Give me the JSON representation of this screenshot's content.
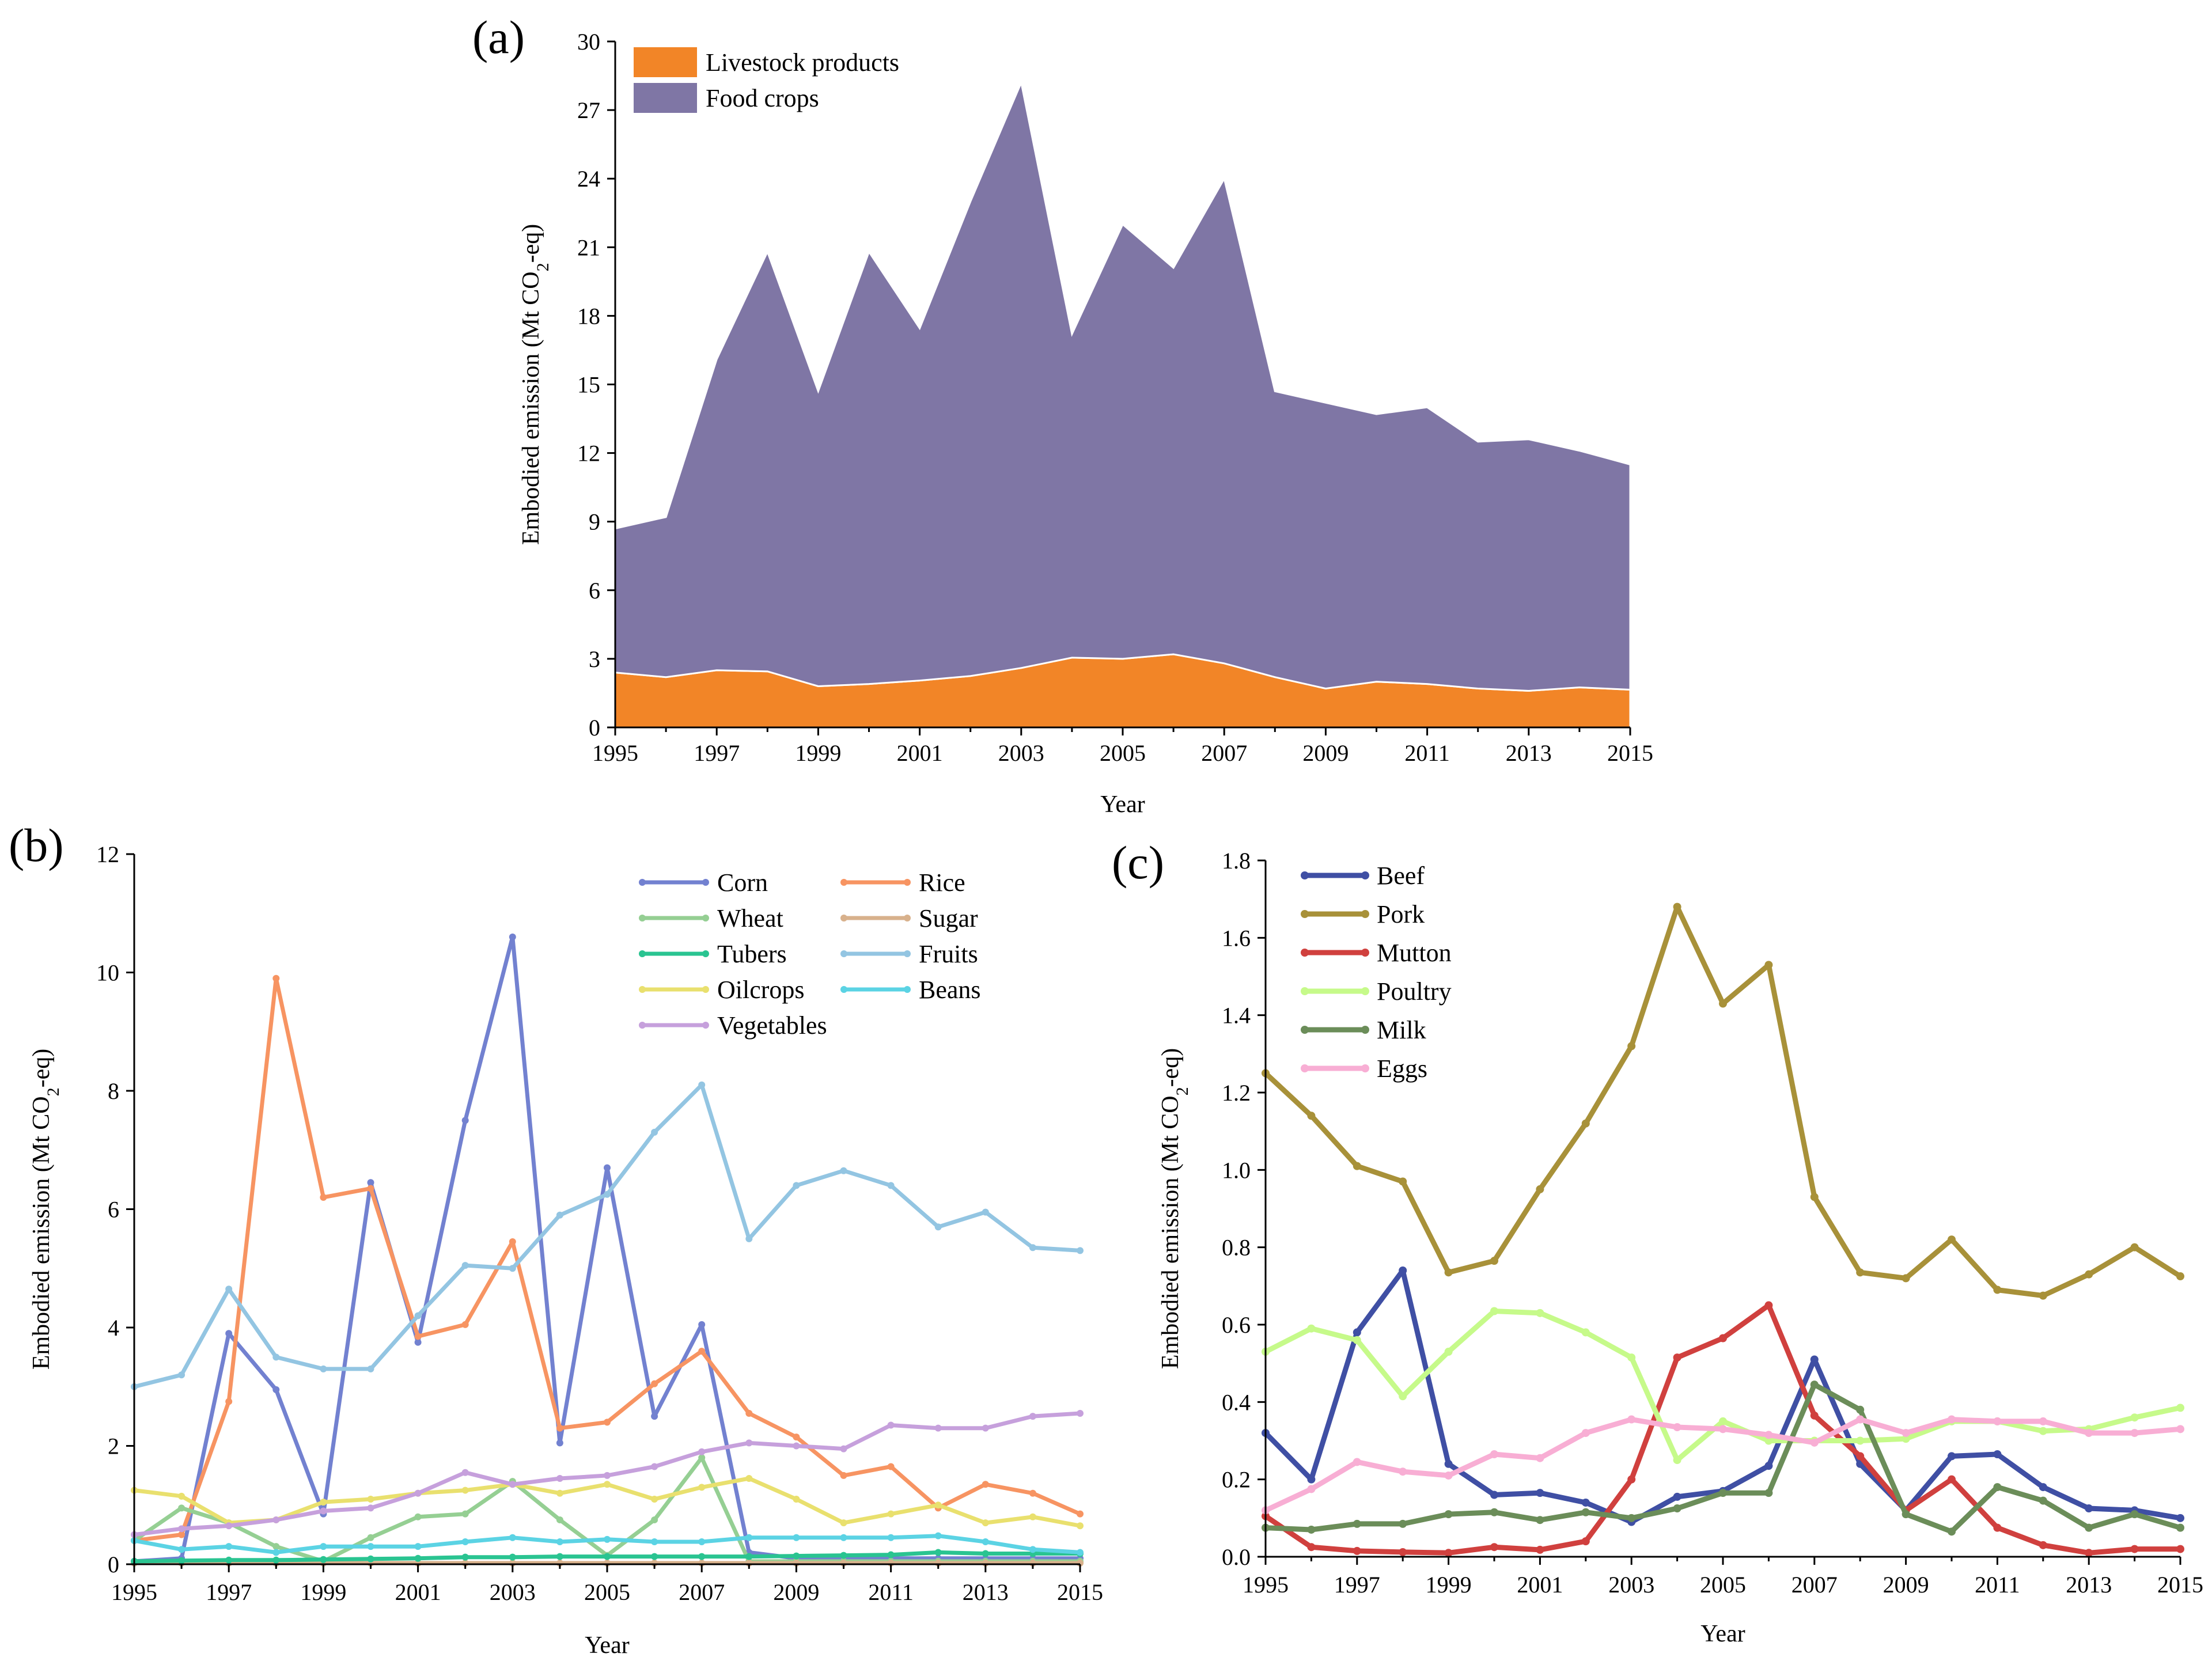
{
  "chart_data": [
    {
      "id": "a",
      "panel_label": "(a)",
      "type": "area",
      "stacked": true,
      "xlabel": "Year",
      "ylabel_parts": [
        "Embodied emission (Mt  CO",
        "2",
        "-eq)"
      ],
      "ylim": [
        0,
        30
      ],
      "yticks": [
        0,
        3,
        6,
        9,
        12,
        15,
        18,
        21,
        24,
        27,
        30
      ],
      "xlim": [
        1995,
        2015
      ],
      "xticks": [
        1995,
        1997,
        1999,
        2001,
        2003,
        2005,
        2007,
        2009,
        2011,
        2013,
        2015
      ],
      "legend_position": "top-left",
      "x": [
        1995,
        1996,
        1997,
        1998,
        1999,
        2000,
        2001,
        2002,
        2003,
        2004,
        2005,
        2006,
        2007,
        2008,
        2009,
        2010,
        2011,
        2012,
        2013,
        2014,
        2015
      ],
      "series": [
        {
          "name": "Livestock products",
          "color": "#f28527",
          "values": [
            2.4,
            2.2,
            2.5,
            2.45,
            1.8,
            1.9,
            2.05,
            2.25,
            2.6,
            3.05,
            3.0,
            3.2,
            2.8,
            2.2,
            1.7,
            2.0,
            1.9,
            1.7,
            1.6,
            1.75,
            1.65
          ]
        },
        {
          "name": "Food crops",
          "color": "#7f76a5",
          "values": [
            6.3,
            7.0,
            13.6,
            18.35,
            12.9,
            18.9,
            15.4,
            20.75,
            25.6,
            14.15,
            19.0,
            16.9,
            21.2,
            12.5,
            12.5,
            11.7,
            12.1,
            10.8,
            11.0,
            10.35,
            9.85
          ]
        }
      ]
    },
    {
      "id": "b",
      "panel_label": "(b)",
      "type": "line",
      "xlabel": "Year",
      "ylabel_parts": [
        "Embodied emission (Mt  CO",
        "2",
        "-eq)"
      ],
      "ylim": [
        0,
        12
      ],
      "yticks": [
        0,
        2,
        4,
        6,
        8,
        10,
        12
      ],
      "xlim": [
        1995,
        2015
      ],
      "xticks": [
        1995,
        1997,
        1999,
        2001,
        2003,
        2005,
        2007,
        2009,
        2011,
        2013,
        2015
      ],
      "legend_position": "top-right",
      "x": [
        1995,
        1996,
        1997,
        1998,
        1999,
        2000,
        2001,
        2002,
        2003,
        2004,
        2005,
        2006,
        2007,
        2008,
        2009,
        2010,
        2011,
        2012,
        2013,
        2014,
        2015
      ],
      "series": [
        {
          "name": "Corn",
          "color": "#7281d0",
          "values": [
            0.05,
            0.1,
            3.9,
            2.95,
            0.85,
            6.45,
            3.75,
            7.5,
            10.6,
            2.05,
            6.7,
            2.5,
            4.05,
            0.2,
            0.1,
            0.1,
            0.1,
            0.1,
            0.1,
            0.1,
            0.1
          ]
        },
        {
          "name": "Rice",
          "color": "#f79462",
          "values": [
            0.4,
            0.5,
            2.75,
            9.9,
            6.2,
            6.35,
            3.85,
            4.05,
            5.45,
            2.3,
            2.4,
            3.05,
            3.6,
            2.55,
            2.15,
            1.5,
            1.65,
            0.95,
            1.35,
            1.2,
            0.85
          ]
        },
        {
          "name": "Wheat",
          "color": "#95cf93",
          "values": [
            0.4,
            0.95,
            0.7,
            0.3,
            0.05,
            0.45,
            0.8,
            0.85,
            1.4,
            0.75,
            0.15,
            0.75,
            1.8,
            0.05,
            0.05,
            0.05,
            0.05,
            0.05,
            0.05,
            0.05,
            0.05
          ]
        },
        {
          "name": "Sugar",
          "color": "#d8b18c",
          "values": [
            0.02,
            0.02,
            0.02,
            0.02,
            0.02,
            0.02,
            0.02,
            0.02,
            0.02,
            0.02,
            0.02,
            0.02,
            0.02,
            0.02,
            0.02,
            0.02,
            0.02,
            0.02,
            0.02,
            0.02,
            0.02
          ]
        },
        {
          "name": "Tubers",
          "color": "#2ac491",
          "values": [
            0.05,
            0.06,
            0.07,
            0.07,
            0.08,
            0.09,
            0.1,
            0.12,
            0.12,
            0.13,
            0.13,
            0.13,
            0.13,
            0.13,
            0.14,
            0.15,
            0.16,
            0.2,
            0.18,
            0.18,
            0.18
          ]
        },
        {
          "name": "Fruits",
          "color": "#93c5e2",
          "values": [
            3.0,
            3.2,
            4.65,
            3.5,
            3.3,
            3.3,
            4.2,
            5.05,
            5.0,
            5.9,
            6.25,
            7.3,
            8.1,
            5.5,
            6.4,
            6.65,
            6.4,
            5.7,
            5.95,
            5.35,
            5.3
          ]
        },
        {
          "name": "Oilcrops",
          "color": "#e9e06e",
          "values": [
            1.25,
            1.15,
            0.7,
            0.75,
            1.05,
            1.1,
            1.2,
            1.25,
            1.35,
            1.2,
            1.35,
            1.1,
            1.3,
            1.45,
            1.1,
            0.7,
            0.85,
            1.0,
            0.7,
            0.8,
            0.65
          ]
        },
        {
          "name": "Beans",
          "color": "#5bd3e4",
          "values": [
            0.4,
            0.25,
            0.3,
            0.2,
            0.3,
            0.3,
            0.3,
            0.38,
            0.45,
            0.38,
            0.42,
            0.38,
            0.38,
            0.45,
            0.45,
            0.45,
            0.45,
            0.48,
            0.38,
            0.25,
            0.2
          ]
        },
        {
          "name": "Vegetables",
          "color": "#c6a0dc",
          "values": [
            0.5,
            0.6,
            0.65,
            0.75,
            0.9,
            0.95,
            1.2,
            1.55,
            1.35,
            1.45,
            1.5,
            1.65,
            1.9,
            2.05,
            2.0,
            1.95,
            2.35,
            2.3,
            2.3,
            2.5,
            2.55
          ]
        }
      ]
    },
    {
      "id": "c",
      "panel_label": "(c)",
      "type": "line",
      "xlabel": "Year",
      "ylabel_parts": [
        "Embodied emission (Mt  CO",
        "2",
        "-eq)"
      ],
      "ylim": [
        0,
        1.8
      ],
      "yticks": [
        0.0,
        0.2,
        0.4,
        0.6,
        0.8,
        1.0,
        1.2,
        1.4,
        1.6,
        1.8
      ],
      "ytick_labels": [
        "0.0",
        "0.2",
        "0.4",
        "0.6",
        "0.8",
        "1.0",
        "1.2",
        "1.4",
        "1.6",
        "1.8"
      ],
      "xlim": [
        1995,
        2015
      ],
      "xticks": [
        1995,
        1997,
        1999,
        2001,
        2003,
        2005,
        2007,
        2009,
        2011,
        2013,
        2015
      ],
      "legend_position": "top-left",
      "x": [
        1995,
        1996,
        1997,
        1998,
        1999,
        2000,
        2001,
        2002,
        2003,
        2004,
        2005,
        2006,
        2007,
        2008,
        2009,
        2010,
        2011,
        2012,
        2013,
        2014,
        2015
      ],
      "series": [
        {
          "name": "Beef",
          "color": "#3f4fa4",
          "values": [
            0.32,
            0.2,
            0.58,
            0.74,
            0.24,
            0.16,
            0.165,
            0.14,
            0.09,
            0.155,
            0.17,
            0.235,
            0.51,
            0.24,
            0.12,
            0.26,
            0.265,
            0.18,
            0.125,
            0.12,
            0.1
          ]
        },
        {
          "name": "Pork",
          "color": "#a89139",
          "values": [
            1.25,
            1.14,
            1.01,
            0.97,
            0.735,
            0.765,
            0.95,
            1.12,
            1.32,
            1.68,
            1.43,
            1.53,
            0.93,
            0.735,
            0.72,
            0.82,
            0.69,
            0.675,
            0.73,
            0.8,
            0.725
          ]
        },
        {
          "name": "Mutton",
          "color": "#d0403e",
          "values": [
            0.105,
            0.025,
            0.015,
            0.012,
            0.01,
            0.025,
            0.018,
            0.04,
            0.2,
            0.515,
            0.565,
            0.65,
            0.365,
            0.26,
            0.12,
            0.2,
            0.075,
            0.03,
            0.01,
            0.02,
            0.02
          ]
        },
        {
          "name": "Poultry",
          "color": "#c6fa8a",
          "values": [
            0.53,
            0.59,
            0.56,
            0.415,
            0.53,
            0.635,
            0.63,
            0.58,
            0.515,
            0.25,
            0.35,
            0.3,
            0.3,
            0.3,
            0.305,
            0.35,
            0.35,
            0.325,
            0.33,
            0.36,
            0.385
          ]
        },
        {
          "name": "Milk",
          "color": "#6b8d59",
          "values": [
            0.075,
            0.07,
            0.085,
            0.085,
            0.11,
            0.115,
            0.095,
            0.115,
            0.1,
            0.125,
            0.165,
            0.165,
            0.445,
            0.38,
            0.11,
            0.065,
            0.18,
            0.145,
            0.075,
            0.11,
            0.075
          ]
        },
        {
          "name": "Eggs",
          "color": "#f8aed4",
          "values": [
            0.12,
            0.175,
            0.245,
            0.22,
            0.21,
            0.265,
            0.255,
            0.32,
            0.355,
            0.335,
            0.33,
            0.315,
            0.295,
            0.355,
            0.32,
            0.355,
            0.35,
            0.35,
            0.32,
            0.32,
            0.33
          ]
        }
      ]
    }
  ]
}
